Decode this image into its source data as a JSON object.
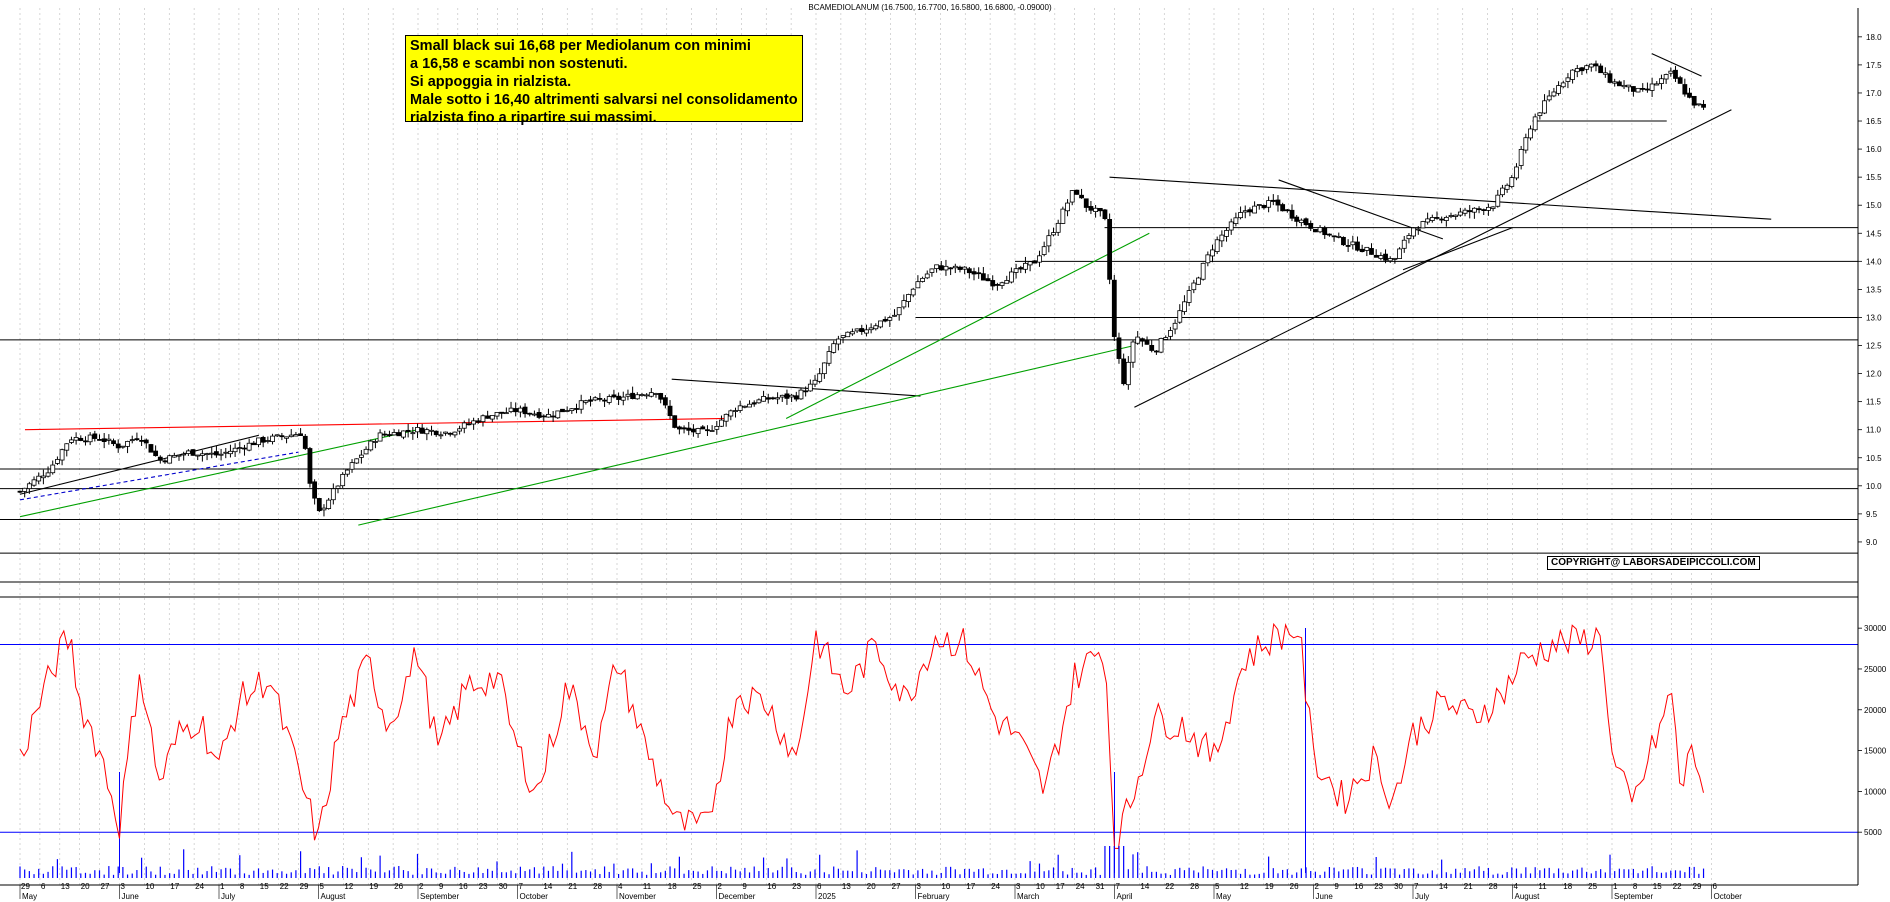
{
  "title": "BCAMEDIOLANUM (16.7500, 16.7700, 16.5800, 16.6800, -0.09000)",
  "note": {
    "lines": [
      "Small black sui 16,68 per Mediolanum con minimi",
      "a 16,58 e scambi non sostenuti.",
      "Si appoggia in rialzista.",
      "Male sotto i 16,40 altrimenti salvarsi nel consolidamento",
      "rialzista fino a ripartire sui massimi."
    ]
  },
  "copyright": "COPYRIGHT@ LABORSADEIPICCOLI.COM",
  "colors": {
    "candle_up": "#ffffff",
    "candle_down": "#000000",
    "resistance_red": "#ff0000",
    "trend_green": "#00a000",
    "indicator_line": "#ff0000",
    "indicator_level": "#0000ff",
    "volume_bars": "#0000ff",
    "grid": "#bbbbbb",
    "note_background": "#ffff00"
  },
  "chart_data": [
    {
      "type": "candlestick",
      "symbol": "BCAMEDIOLANUM",
      "last": {
        "open": 16.75,
        "high": 16.77,
        "low": 16.58,
        "close": 16.68,
        "change": -0.09
      },
      "ylim": [
        8.5,
        18.3
      ],
      "y_ticks": [
        "9.0",
        "9.5",
        "10.0",
        "10.5",
        "11.0",
        "11.5",
        "12.0",
        "12.5",
        "13.0",
        "13.5",
        "14.0",
        "14.5",
        "15.0",
        "15.5",
        "16.0",
        "16.5",
        "17.0",
        "17.5",
        "18.0"
      ],
      "x_axis": {
        "months": [
          {
            "label": "May",
            "x": 0.0
          },
          {
            "label": "June",
            "x": 1.0
          },
          {
            "label": "July",
            "x": 2.0
          },
          {
            "label": "August",
            "x": 3.0
          },
          {
            "label": "September",
            "x": 4.0
          },
          {
            "label": "October",
            "x": 5.0
          },
          {
            "label": "November",
            "x": 6.0
          },
          {
            "label": "December",
            "x": 7.0
          },
          {
            "label": "2025",
            "x": 8.0
          },
          {
            "label": "February",
            "x": 9.0
          },
          {
            "label": "March",
            "x": 10.0
          },
          {
            "label": "April",
            "x": 11.0
          },
          {
            "label": "May",
            "x": 12.0
          },
          {
            "label": "June",
            "x": 13.0
          },
          {
            "label": "July",
            "x": 14.0
          },
          {
            "label": "August",
            "x": 15.0
          },
          {
            "label": "September",
            "x": 16.0
          },
          {
            "label": "October",
            "x": 17.0
          }
        ],
        "days": [
          [
            "29",
            "6",
            "13",
            "20",
            "27"
          ],
          [
            "3",
            "10",
            "17",
            "24"
          ],
          [
            "1",
            "8",
            "15",
            "22",
            "29"
          ],
          [
            "5",
            "12",
            "19",
            "26"
          ],
          [
            "2",
            "9",
            "16",
            "23",
            "30"
          ],
          [
            "7",
            "14",
            "21",
            "28"
          ],
          [
            "4",
            "11",
            "18",
            "25"
          ],
          [
            "2",
            "9",
            "16",
            "23"
          ],
          [
            "6",
            "13",
            "20",
            "27"
          ],
          [
            "3",
            "10",
            "17",
            "24"
          ],
          [
            "3",
            "10",
            "17",
            "24",
            "31"
          ],
          [
            "7",
            "14",
            "22",
            "28"
          ],
          [
            "5",
            "12",
            "19",
            "26"
          ],
          [
            "2",
            "9",
            "16",
            "23",
            "30"
          ],
          [
            "7",
            "14",
            "21",
            "28"
          ],
          [
            "4",
            "11",
            "18",
            "25"
          ],
          [
            "1",
            "8",
            "15",
            "22",
            "29"
          ],
          [
            "6"
          ]
        ]
      },
      "price_path": [
        [
          0.0,
          9.9
        ],
        [
          0.3,
          10.3
        ],
        [
          0.5,
          10.85
        ],
        [
          0.8,
          10.85
        ],
        [
          1.0,
          10.7
        ],
        [
          1.2,
          10.9
        ],
        [
          1.4,
          10.45
        ],
        [
          1.7,
          10.6
        ],
        [
          2.0,
          10.55
        ],
        [
          2.4,
          10.8
        ],
        [
          2.85,
          10.95
        ],
        [
          2.9,
          10.1
        ],
        [
          3.0,
          9.5
        ],
        [
          3.3,
          10.3
        ],
        [
          3.6,
          10.9
        ],
        [
          4.0,
          11.0
        ],
        [
          4.3,
          10.95
        ],
        [
          4.7,
          11.25
        ],
        [
          5.0,
          11.35
        ],
        [
          5.3,
          11.25
        ],
        [
          5.7,
          11.5
        ],
        [
          6.0,
          11.55
        ],
        [
          6.4,
          11.7
        ],
        [
          6.6,
          11.0
        ],
        [
          6.9,
          10.95
        ],
        [
          7.2,
          11.4
        ],
        [
          7.5,
          11.55
        ],
        [
          7.8,
          11.6
        ],
        [
          8.0,
          11.85
        ],
        [
          8.2,
          12.6
        ],
        [
          8.5,
          12.8
        ],
        [
          8.8,
          13.05
        ],
        [
          9.0,
          13.6
        ],
        [
          9.2,
          13.9
        ],
        [
          9.5,
          13.85
        ],
        [
          9.8,
          13.6
        ],
        [
          10.2,
          14.0
        ],
        [
          10.4,
          14.6
        ],
        [
          10.6,
          15.3
        ],
        [
          10.7,
          15.0
        ],
        [
          10.9,
          14.8
        ],
        [
          11.0,
          12.6
        ],
        [
          11.1,
          11.8
        ],
        [
          11.2,
          12.7
        ],
        [
          11.4,
          12.4
        ],
        [
          11.6,
          12.9
        ],
        [
          11.8,
          13.6
        ],
        [
          12.0,
          14.3
        ],
        [
          12.3,
          14.9
        ],
        [
          12.6,
          15.05
        ],
        [
          12.8,
          14.8
        ],
        [
          13.0,
          14.6
        ],
        [
          13.3,
          14.35
        ],
        [
          13.6,
          14.15
        ],
        [
          13.8,
          14.0
        ],
        [
          14.0,
          14.6
        ],
        [
          14.3,
          14.8
        ],
        [
          14.6,
          14.9
        ],
        [
          14.8,
          15.0
        ],
        [
          15.0,
          15.5
        ],
        [
          15.2,
          16.5
        ],
        [
          15.4,
          17.0
        ],
        [
          15.6,
          17.4
        ],
        [
          15.8,
          17.5
        ],
        [
          16.0,
          17.2
        ],
        [
          16.3,
          17.0
        ],
        [
          16.6,
          17.35
        ],
        [
          16.8,
          16.85
        ],
        [
          16.95,
          16.68
        ]
      ],
      "lines": {
        "horizontal": [
          8.8,
          9.4,
          9.95,
          10.3,
          12.6,
          13.0,
          14.0,
          14.6,
          16.5
        ],
        "resistance_red": [
          [
            0.05,
            11.0
          ],
          [
            7.1,
            11.2
          ]
        ],
        "downtrend_black": [
          [
            [
              6.55,
              11.9
            ],
            [
              9.05,
              11.6
            ]
          ],
          [
            [
              10.95,
              15.5
            ],
            [
              17.6,
              14.75
            ]
          ],
          [
            [
              12.65,
              15.45
            ],
            [
              14.3,
              14.4
            ]
          ],
          [
            [
              16.4,
              17.7
            ],
            [
              16.9,
              17.3
            ]
          ]
        ],
        "uptrend_black": [
          [
            [
              0.0,
              9.85
            ],
            [
              2.4,
              10.9
            ]
          ],
          [
            [
              11.2,
              11.4
            ],
            [
              17.2,
              16.7
            ]
          ],
          [
            [
              13.9,
              13.85
            ],
            [
              15.0,
              14.6
            ]
          ]
        ],
        "uptrend_green": [
          [
            [
              0.0,
              9.45
            ],
            [
              4.0,
              11.0
            ]
          ],
          [
            [
              3.4,
              9.3
            ],
            [
              11.2,
              12.5
            ]
          ],
          [
            [
              7.7,
              11.2
            ],
            [
              11.35,
              14.5
            ]
          ]
        ],
        "support_short_black": [
          [
            [
              15.2,
              16.5
            ],
            [
              16.55,
              16.5
            ]
          ]
        ]
      }
    },
    {
      "type": "line",
      "ylim": [
        0,
        31000
      ],
      "y_ticks": [
        "5000",
        "10000",
        "15000",
        "20000",
        "25000",
        "30000"
      ],
      "levels": [
        28000,
        5000
      ],
      "markers_x": [
        1.0,
        11.0,
        13.0
      ],
      "values_path": [
        [
          0.0,
          14000
        ],
        [
          0.2,
          21000
        ],
        [
          0.4,
          27000
        ],
        [
          0.5,
          29000
        ],
        [
          0.6,
          21000
        ],
        [
          0.8,
          15000
        ],
        [
          1.0,
          6000
        ],
        [
          1.2,
          25000
        ],
        [
          1.4,
          11000
        ],
        [
          1.6,
          17000
        ],
        [
          1.8,
          19000
        ],
        [
          2.0,
          13000
        ],
        [
          2.2,
          21000
        ],
        [
          2.5,
          24000
        ],
        [
          2.9,
          8000
        ],
        [
          3.0,
          4000
        ],
        [
          3.2,
          17000
        ],
        [
          3.5,
          26000
        ],
        [
          3.7,
          18000
        ],
        [
          4.0,
          27000
        ],
        [
          4.2,
          15000
        ],
        [
          4.5,
          23000
        ],
        [
          4.8,
          24000
        ],
        [
          5.0,
          15000
        ],
        [
          5.2,
          10000
        ],
        [
          5.5,
          23000
        ],
        [
          5.8,
          15000
        ],
        [
          6.0,
          26000
        ],
        [
          6.3,
          15000
        ],
        [
          6.6,
          6000
        ],
        [
          6.9,
          5500
        ],
        [
          7.2,
          22000
        ],
        [
          7.5,
          21000
        ],
        [
          7.8,
          14000
        ],
        [
          8.0,
          29000
        ],
        [
          8.3,
          22000
        ],
        [
          8.6,
          28000
        ],
        [
          8.9,
          21000
        ],
        [
          9.2,
          29000
        ],
        [
          9.5,
          28000
        ],
        [
          9.8,
          19000
        ],
        [
          10.0,
          17000
        ],
        [
          10.3,
          10000
        ],
        [
          10.6,
          24000
        ],
        [
          10.9,
          28000
        ],
        [
          11.0,
          4000
        ],
        [
          11.15,
          8000
        ],
        [
          11.4,
          19000
        ],
        [
          11.7,
          18000
        ],
        [
          12.0,
          14000
        ],
        [
          12.3,
          26000
        ],
        [
          12.6,
          29000
        ],
        [
          12.85,
          30000
        ],
        [
          13.0,
          14000
        ],
        [
          13.3,
          9000
        ],
        [
          13.6,
          14000
        ],
        [
          13.8,
          9000
        ],
        [
          14.0,
          17000
        ],
        [
          14.3,
          21000
        ],
        [
          14.6,
          19000
        ],
        [
          14.9,
          22000
        ],
        [
          15.1,
          26000
        ],
        [
          15.4,
          28000
        ],
        [
          15.7,
          28500
        ],
        [
          15.9,
          29000
        ],
        [
          16.0,
          14000
        ],
        [
          16.2,
          8000
        ],
        [
          16.4,
          15000
        ],
        [
          16.6,
          22000
        ],
        [
          16.7,
          9000
        ],
        [
          16.8,
          16000
        ],
        [
          16.95,
          9000
        ]
      ]
    }
  ]
}
